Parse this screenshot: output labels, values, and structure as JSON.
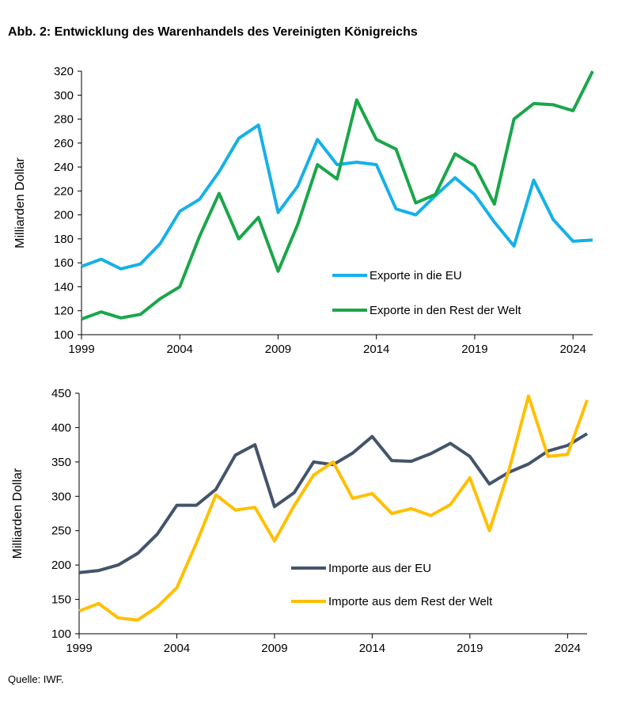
{
  "title": "Abb. 2: Entwicklung des Warenhandels des Vereinigten Königreichs",
  "source": "Quelle: IWF.",
  "chart_data": [
    {
      "type": "line",
      "ylabel": "Milliarden Dollar",
      "ylim": [
        100,
        320
      ],
      "yticks": [
        100,
        120,
        140,
        160,
        180,
        200,
        220,
        240,
        260,
        280,
        300,
        320
      ],
      "xlim": [
        1999,
        2025
      ],
      "xticks": [
        1999,
        2004,
        2009,
        2014,
        2019,
        2024
      ],
      "x": [
        1999,
        2000,
        2001,
        2002,
        2003,
        2004,
        2005,
        2006,
        2007,
        2008,
        2009,
        2010,
        2011,
        2012,
        2013,
        2014,
        2015,
        2016,
        2017,
        2018,
        2019,
        2020,
        2021,
        2022,
        2023,
        2024,
        2025
      ],
      "legend_position": "bottom-right",
      "series": [
        {
          "name": "Exporte in die EU",
          "color": "#16b0e8",
          "values": [
            157,
            163,
            155,
            159,
            176,
            203,
            213,
            236,
            264,
            275,
            202,
            224,
            263,
            242,
            244,
            242,
            205,
            200,
            216,
            231,
            217,
            194,
            174,
            229,
            196,
            178,
            179
          ]
        },
        {
          "name": "Exporte in den Rest der Welt",
          "color": "#1aa64a",
          "values": [
            113,
            119,
            114,
            117,
            130,
            140,
            182,
            218,
            180,
            198,
            153,
            192,
            242,
            230,
            296,
            263,
            255,
            210,
            217,
            251,
            241,
            209,
            280,
            293,
            292,
            287,
            320
          ]
        }
      ]
    },
    {
      "type": "line",
      "ylabel": "Milliarden Dollar",
      "ylim": [
        100,
        450
      ],
      "yticks": [
        100,
        150,
        200,
        250,
        300,
        350,
        400,
        450
      ],
      "xlim": [
        1999,
        2025
      ],
      "xticks": [
        1999,
        2004,
        2009,
        2014,
        2019,
        2024
      ],
      "x": [
        1999,
        2000,
        2001,
        2002,
        2003,
        2004,
        2005,
        2006,
        2007,
        2008,
        2009,
        2010,
        2011,
        2012,
        2013,
        2014,
        2015,
        2016,
        2017,
        2018,
        2019,
        2020,
        2021,
        2022,
        2023,
        2024,
        2025
      ],
      "legend_position": "bottom-right",
      "series": [
        {
          "name": "Importe aus der EU",
          "color": "#44546a",
          "values": [
            189,
            192,
            200,
            217,
            245,
            287,
            287,
            310,
            360,
            375,
            285,
            305,
            350,
            346,
            363,
            387,
            352,
            351,
            362,
            377,
            358,
            318,
            335,
            347,
            366,
            374,
            391
          ]
        },
        {
          "name": "Importe aus dem Rest der Welt",
          "color": "#ffc000",
          "values": [
            133,
            144,
            123,
            120,
            139,
            167,
            232,
            302,
            280,
            284,
            235,
            286,
            331,
            350,
            297,
            304,
            275,
            282,
            272,
            288,
            327,
            250,
            338,
            446,
            358,
            361,
            440
          ]
        }
      ]
    }
  ]
}
